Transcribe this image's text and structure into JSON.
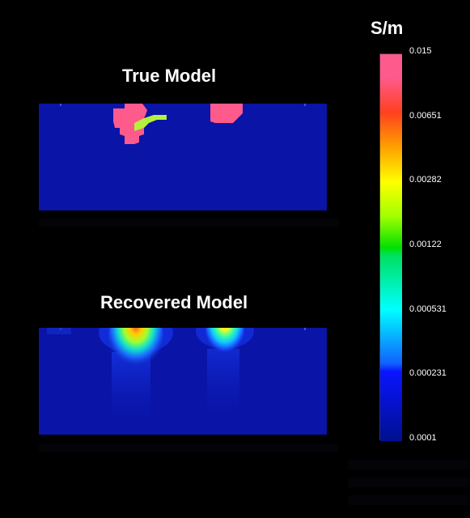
{
  "figure": {
    "unit_label": "S/m",
    "panels": [
      {
        "id": "true",
        "title": "True Model"
      },
      {
        "id": "recovered",
        "title": "Recovered Model"
      }
    ]
  },
  "colorbar": {
    "ticks": [
      "0.015",
      "0.00651",
      "0.00282",
      "0.00122",
      "0.000531",
      "0.000231",
      "0.0001"
    ],
    "colors": [
      "#ff5a8c",
      "#ff4020",
      "#ffe000",
      "#00e000",
      "#00ffff",
      "#1060ff",
      "#001090"
    ]
  },
  "colors": {
    "background": "#000000",
    "model_background": "#0a14a6",
    "high_conductivity": "#ff5a8c",
    "intermediate": "#b4f03c"
  }
}
